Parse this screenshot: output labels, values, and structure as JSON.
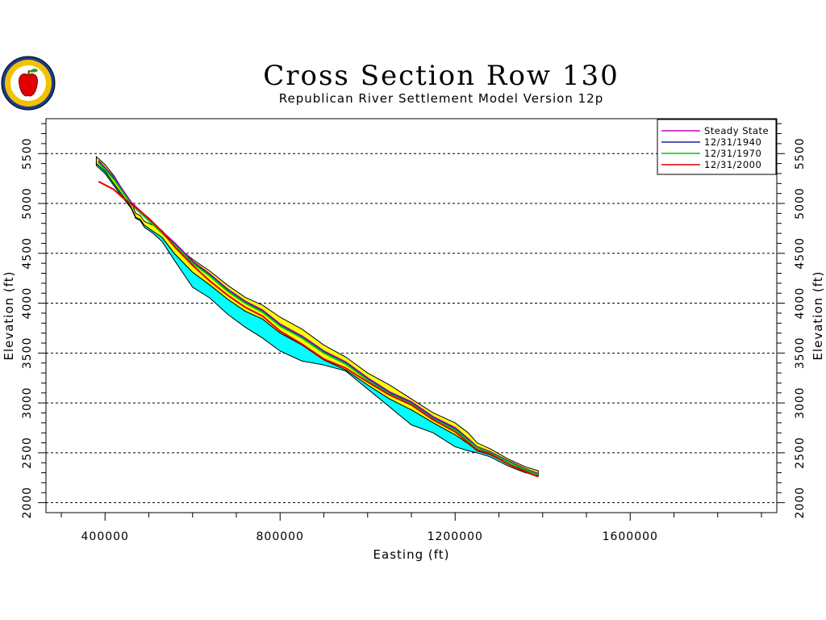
{
  "chart_data": {
    "type": "line",
    "title": "Cross Section Row 130",
    "subtitle": "Republican River Settlement Model Version 12p",
    "xlabel": "Easting (ft)",
    "ylabel": "Elevation (ft)",
    "xlim": [
      265000,
      1935000
    ],
    "ylim": [
      1900,
      5850
    ],
    "x_ticks": [
      400000,
      800000,
      1200000,
      1600000
    ],
    "x_tick_labels": [
      "400000",
      "800000",
      "1200000",
      "1600000"
    ],
    "y_ticks": [
      2000,
      2500,
      3000,
      3500,
      4000,
      4500,
      5000,
      5500
    ],
    "y_tick_labels": [
      "2000",
      "2500",
      "3000",
      "3500",
      "4000",
      "4500",
      "5000",
      "5500"
    ],
    "grid": "horizontal dashed at y ticks",
    "legend_position": "top-right",
    "legend": [
      "Steady State",
      "12/31/1940",
      "12/31/1970",
      "12/31/2000"
    ],
    "colors": {
      "steady_state": "#cc00cc",
      "y1940": "#2020a0",
      "y1970": "#00cc00",
      "y2000": "#e00000",
      "top_layer_fill": "#ffff00",
      "bottom_layer_fill": "#00ffff",
      "gridline": "#000000"
    },
    "layers": {
      "top_surface": {
        "x": [
          380000,
          400000,
          420000,
          440000,
          460000,
          470000,
          480000,
          490000,
          510000,
          530000,
          560000,
          600000,
          640000,
          680000,
          720000,
          760000,
          800000,
          850000,
          900000,
          950000,
          1000000,
          1050000,
          1100000,
          1150000,
          1200000,
          1230000,
          1250000,
          1280000,
          1320000,
          1360000,
          1390000
        ],
        "y": [
          5470,
          5390,
          5280,
          5140,
          5010,
          4900,
          4880,
          4820,
          4780,
          4730,
          4580,
          4440,
          4320,
          4180,
          4060,
          3980,
          3860,
          3740,
          3580,
          3460,
          3300,
          3180,
          3040,
          2900,
          2800,
          2700,
          2600,
          2540,
          2440,
          2360,
          2320
        ]
      },
      "layer_boundary": {
        "x": [
          380000,
          400000,
          420000,
          440000,
          460000,
          470000,
          480000,
          490000,
          510000,
          530000,
          560000,
          600000,
          640000,
          680000,
          720000,
          760000,
          800000,
          850000,
          900000,
          950000,
          1000000,
          1050000,
          1100000,
          1150000,
          1200000,
          1230000,
          1250000,
          1280000,
          1320000,
          1360000,
          1390000
        ],
        "y": [
          5400,
          5320,
          5200,
          5080,
          4960,
          4860,
          4840,
          4780,
          4720,
          4660,
          4490,
          4310,
          4180,
          4040,
          3920,
          3840,
          3700,
          3580,
          3430,
          3330,
          3180,
          3040,
          2930,
          2800,
          2680,
          2590,
          2520,
          2480,
          2390,
          2320,
          2280
        ]
      },
      "bottom_surface": {
        "x": [
          380000,
          400000,
          420000,
          440000,
          460000,
          470000,
          480000,
          490000,
          510000,
          530000,
          560000,
          600000,
          640000,
          680000,
          720000,
          760000,
          800000,
          850000,
          900000,
          950000,
          1000000,
          1050000,
          1100000,
          1150000,
          1200000,
          1230000,
          1250000,
          1280000,
          1320000,
          1360000,
          1390000
        ],
        "y": [
          5380,
          5300,
          5180,
          5060,
          4950,
          4850,
          4830,
          4760,
          4700,
          4620,
          4420,
          4160,
          4050,
          3890,
          3760,
          3650,
          3520,
          3420,
          3380,
          3320,
          3140,
          2960,
          2780,
          2700,
          2560,
          2520,
          2500,
          2460,
          2370,
          2300,
          2270
        ]
      }
    },
    "series": [
      {
        "name": "Steady State",
        "x": [
          385000,
          420000,
          460000,
          510000,
          560000,
          600000,
          640000,
          680000,
          720000,
          760000,
          800000,
          850000,
          900000,
          950000,
          1000000,
          1050000,
          1100000,
          1150000,
          1200000,
          1230000,
          1250000,
          1280000,
          1320000,
          1360000,
          1390000
        ],
        "y": [
          5430,
          5260,
          5010,
          4800,
          4600,
          4420,
          4290,
          4140,
          4020,
          3930,
          3790,
          3670,
          3520,
          3410,
          3250,
          3110,
          3010,
          2860,
          2750,
          2640,
          2560,
          2510,
          2420,
          2340,
          2290
        ]
      },
      {
        "name": "12/31/1940",
        "x": [
          385000,
          420000,
          460000,
          510000,
          560000,
          600000,
          640000,
          680000,
          720000,
          760000,
          800000,
          850000,
          900000,
          950000,
          1000000,
          1050000,
          1100000,
          1150000,
          1200000,
          1230000,
          1250000,
          1280000,
          1320000,
          1360000,
          1390000
        ],
        "y": [
          5420,
          5250,
          5000,
          4790,
          4590,
          4410,
          4280,
          4130,
          4010,
          3920,
          3780,
          3660,
          3510,
          3400,
          3240,
          3100,
          3000,
          2850,
          2740,
          2630,
          2555,
          2505,
          2415,
          2335,
          2285
        ]
      },
      {
        "name": "12/31/1970",
        "x": [
          385000,
          420000,
          460000,
          510000,
          560000,
          600000,
          640000,
          680000,
          720000,
          760000,
          800000,
          850000,
          900000,
          950000,
          1000000,
          1050000,
          1100000,
          1150000,
          1200000,
          1230000,
          1250000,
          1280000,
          1320000,
          1360000,
          1390000
        ],
        "y": [
          5410,
          5240,
          4990,
          4785,
          4580,
          4400,
          4270,
          4120,
          4000,
          3910,
          3770,
          3650,
          3500,
          3390,
          3230,
          3090,
          2990,
          2840,
          2730,
          2620,
          2550,
          2500,
          2410,
          2330,
          2280
        ]
      },
      {
        "name": "12/31/2000",
        "x": [
          385000,
          420000,
          440000,
          470000,
          500000,
          530000,
          560000,
          600000,
          640000,
          680000,
          720000,
          760000,
          800000,
          850000,
          900000,
          950000,
          1000000,
          1050000,
          1100000,
          1150000,
          1200000,
          1230000,
          1250000,
          1280000,
          1320000,
          1360000,
          1390000
        ],
        "y": [
          5220,
          5140,
          5060,
          4960,
          4850,
          4720,
          4560,
          4380,
          4220,
          4080,
          3960,
          3870,
          3720,
          3590,
          3440,
          3350,
          3210,
          3080,
          2980,
          2830,
          2710,
          2600,
          2530,
          2490,
          2390,
          2310,
          2260
        ]
      }
    ]
  }
}
